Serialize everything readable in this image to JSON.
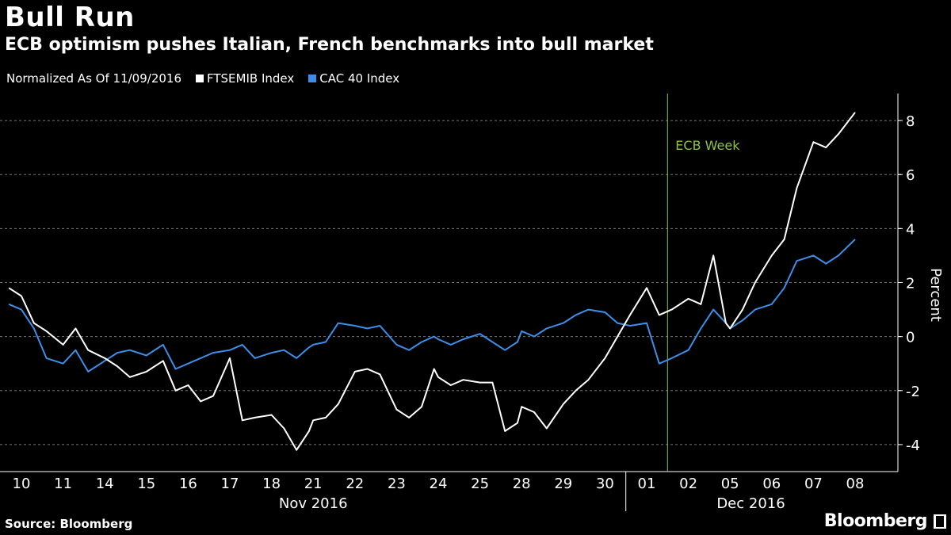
{
  "header": {
    "title": "Bull Run",
    "subtitle": "ECB optimism pushes Italian, French benchmarks into bull market"
  },
  "legend": {
    "normalized": "Normalized As Of 11/09/2016",
    "series_a": "FTSEMIB Index",
    "series_b": "CAC 40 Index",
    "color_a": "#ffffff",
    "color_b": "#3d8ee8"
  },
  "footer": {
    "source": "Source: Bloomberg",
    "brand": "Bloomberg"
  },
  "chart_data": {
    "type": "line",
    "ylabel": "Percent",
    "ylim": [
      -5,
      9
    ],
    "yticks": [
      -4,
      -2,
      0,
      2,
      4,
      6,
      8
    ],
    "grid": true,
    "legend_position": "top-left",
    "x_categories": [
      "10",
      "11",
      "14",
      "15",
      "16",
      "17",
      "18",
      "21",
      "22",
      "23",
      "24",
      "25",
      "28",
      "29",
      "30",
      "01",
      "02",
      "05",
      "06",
      "07",
      "08"
    ],
    "x_groups": [
      {
        "label": "Nov 2016",
        "from": 0,
        "to": 14
      },
      {
        "label": "Dec 2016",
        "from": 15,
        "to": 20
      }
    ],
    "annotation": {
      "label": "ECB Week",
      "x": 15.5,
      "color": "#8cc63f"
    },
    "series": [
      {
        "name": "FTSEMIB Index",
        "color": "#ffffff",
        "x": [
          -0.3,
          0,
          0.3,
          0.6,
          1,
          1.3,
          1.6,
          2,
          2.3,
          2.6,
          3,
          3.4,
          3.7,
          4,
          4.3,
          4.6,
          5,
          5.3,
          5.6,
          6,
          6.3,
          6.6,
          6.9,
          7,
          7.3,
          7.6,
          8,
          8.3,
          8.6,
          9,
          9.3,
          9.6,
          9.9,
          10,
          10.3,
          10.6,
          11,
          11.3,
          11.6,
          11.9,
          12,
          12.3,
          12.6,
          13,
          13.3,
          13.6,
          14,
          14.3,
          14.6,
          15,
          15.3,
          15.6,
          16,
          16.3,
          16.6,
          16.9,
          17,
          17.3,
          17.6,
          18,
          18.3,
          18.6,
          19,
          19.3,
          19.6,
          20
        ],
        "values": [
          1.8,
          1.5,
          0.5,
          0.2,
          -0.3,
          0.3,
          -0.5,
          -0.8,
          -1.1,
          -1.5,
          -1.3,
          -0.9,
          -2.0,
          -1.8,
          -2.4,
          -2.2,
          -0.8,
          -3.1,
          -3.0,
          -2.9,
          -3.4,
          -4.2,
          -3.5,
          -3.1,
          -3.0,
          -2.5,
          -1.3,
          -1.2,
          -1.4,
          -2.7,
          -3.0,
          -2.6,
          -1.2,
          -1.5,
          -1.8,
          -1.6,
          -1.7,
          -1.7,
          -3.5,
          -3.2,
          -2.6,
          -2.8,
          -3.4,
          -2.5,
          -2.0,
          -1.6,
          -0.8,
          0.0,
          0.8,
          1.8,
          0.8,
          1.0,
          1.4,
          1.2,
          3.0,
          0.5,
          0.3,
          1.0,
          2.0,
          3.0,
          3.6,
          5.5,
          7.2,
          7.0,
          7.5,
          8.3
        ]
      },
      {
        "name": "CAC 40 Index",
        "color": "#3d8ee8",
        "x": [
          -0.3,
          0,
          0.3,
          0.6,
          1,
          1.3,
          1.6,
          2,
          2.3,
          2.6,
          3,
          3.4,
          3.7,
          4,
          4.3,
          4.6,
          5,
          5.3,
          5.6,
          6,
          6.3,
          6.6,
          6.9,
          7,
          7.3,
          7.6,
          8,
          8.3,
          8.6,
          9,
          9.3,
          9.6,
          9.9,
          10,
          10.3,
          10.6,
          11,
          11.3,
          11.6,
          11.9,
          12,
          12.3,
          12.6,
          13,
          13.3,
          13.6,
          14,
          14.3,
          14.6,
          15,
          15.3,
          15.6,
          16,
          16.3,
          16.6,
          16.9,
          17,
          17.3,
          17.6,
          18,
          18.3,
          18.6,
          19,
          19.3,
          19.6,
          20
        ],
        "values": [
          1.2,
          1.0,
          0.3,
          -0.8,
          -1.0,
          -0.5,
          -1.3,
          -0.9,
          -0.6,
          -0.5,
          -0.7,
          -0.3,
          -1.2,
          -1.0,
          -0.8,
          -0.6,
          -0.5,
          -0.3,
          -0.8,
          -0.6,
          -0.5,
          -0.8,
          -0.4,
          -0.3,
          -0.2,
          0.5,
          0.4,
          0.3,
          0.4,
          -0.3,
          -0.5,
          -0.2,
          0.0,
          -0.1,
          -0.3,
          -0.1,
          0.1,
          -0.2,
          -0.5,
          -0.2,
          0.2,
          0.0,
          0.3,
          0.5,
          0.8,
          1.0,
          0.9,
          0.5,
          0.4,
          0.5,
          -1.0,
          -0.8,
          -0.5,
          0.3,
          1.0,
          0.5,
          0.3,
          0.6,
          1.0,
          1.2,
          1.8,
          2.8,
          3.0,
          2.7,
          3.0,
          3.6
        ]
      }
    ]
  }
}
